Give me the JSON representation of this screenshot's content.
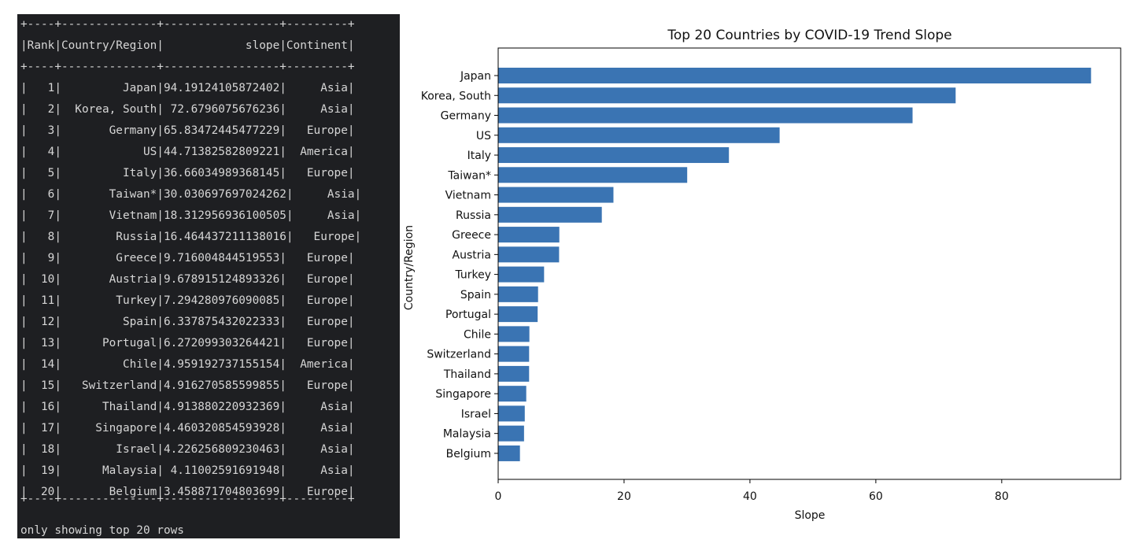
{
  "terminal": {
    "border": "+----+--------------+-----------------+---------+",
    "header": "|Rank|Country/Region|            slope|Continent|",
    "footer": "only showing top 20 rows",
    "rows": [
      {
        "rank": "1",
        "country": "Japan",
        "slope": "94.19124105872402",
        "continent": "Asia"
      },
      {
        "rank": "2",
        "country": "Korea, South",
        "slope": "72.6796075676236",
        "continent": "Asia"
      },
      {
        "rank": "3",
        "country": "Germany",
        "slope": "65.83472445477229",
        "continent": "Europe"
      },
      {
        "rank": "4",
        "country": "US",
        "slope": "44.71382582809221",
        "continent": "America"
      },
      {
        "rank": "5",
        "country": "Italy",
        "slope": "36.66034989368145",
        "continent": "Europe"
      },
      {
        "rank": "6",
        "country": "Taiwan*",
        "slope": "30.030697697024262",
        "continent": "Asia"
      },
      {
        "rank": "7",
        "country": "Vietnam",
        "slope": "18.312956936100505",
        "continent": "Asia"
      },
      {
        "rank": "8",
        "country": "Russia",
        "slope": "16.464437211138016",
        "continent": "Europe"
      },
      {
        "rank": "9",
        "country": "Greece",
        "slope": "9.716004844519553",
        "continent": "Europe"
      },
      {
        "rank": "10",
        "country": "Austria",
        "slope": "9.678915124893326",
        "continent": "Europe"
      },
      {
        "rank": "11",
        "country": "Turkey",
        "slope": "7.294280976090085",
        "continent": "Europe"
      },
      {
        "rank": "12",
        "country": "Spain",
        "slope": "6.337875432022333",
        "continent": "Europe"
      },
      {
        "rank": "13",
        "country": "Portugal",
        "slope": "6.272099303264421",
        "continent": "Europe"
      },
      {
        "rank": "14",
        "country": "Chile",
        "slope": "4.959192737155154",
        "continent": "America"
      },
      {
        "rank": "15",
        "country": "Switzerland",
        "slope": "4.916270585599855",
        "continent": "Europe"
      },
      {
        "rank": "16",
        "country": "Thailand",
        "slope": "4.913880220932369",
        "continent": "Asia"
      },
      {
        "rank": "17",
        "country": "Singapore",
        "slope": "4.460320854593928",
        "continent": "Asia"
      },
      {
        "rank": "18",
        "country": "Israel",
        "slope": "4.226256809230463",
        "continent": "Asia"
      },
      {
        "rank": "19",
        "country": "Malaysia",
        "slope": "4.11002591691948",
        "continent": "Asia"
      },
      {
        "rank": "20",
        "country": "Belgium",
        "slope": "3.458871704803699",
        "continent": "Europe"
      }
    ]
  },
  "chart_data": {
    "type": "bar",
    "orientation": "horizontal",
    "title": "Top 20 Countries by COVID-19 Trend Slope",
    "xlabel": "Slope",
    "ylabel": "Country/Region",
    "xlim": [
      0,
      98.9
    ],
    "xticks": [
      0,
      20,
      40,
      60,
      80
    ],
    "grid": false,
    "bar_color": "#3a74b3",
    "categories": [
      "Japan",
      "Korea, South",
      "Germany",
      "US",
      "Italy",
      "Taiwan*",
      "Vietnam",
      "Russia",
      "Greece",
      "Austria",
      "Turkey",
      "Spain",
      "Portugal",
      "Chile",
      "Switzerland",
      "Thailand",
      "Singapore",
      "Israel",
      "Malaysia",
      "Belgium"
    ],
    "values": [
      94.19124105872402,
      72.6796075676236,
      65.83472445477229,
      44.71382582809221,
      36.66034989368145,
      30.030697697024262,
      18.312956936100505,
      16.464437211138016,
      9.716004844519553,
      9.678915124893326,
      7.294280976090085,
      6.337875432022333,
      6.272099303264421,
      4.959192737155154,
      4.916270585599855,
      4.913880220932369,
      4.460320854593928,
      4.226256809230463,
      4.11002591691948,
      3.458871704803699
    ]
  }
}
